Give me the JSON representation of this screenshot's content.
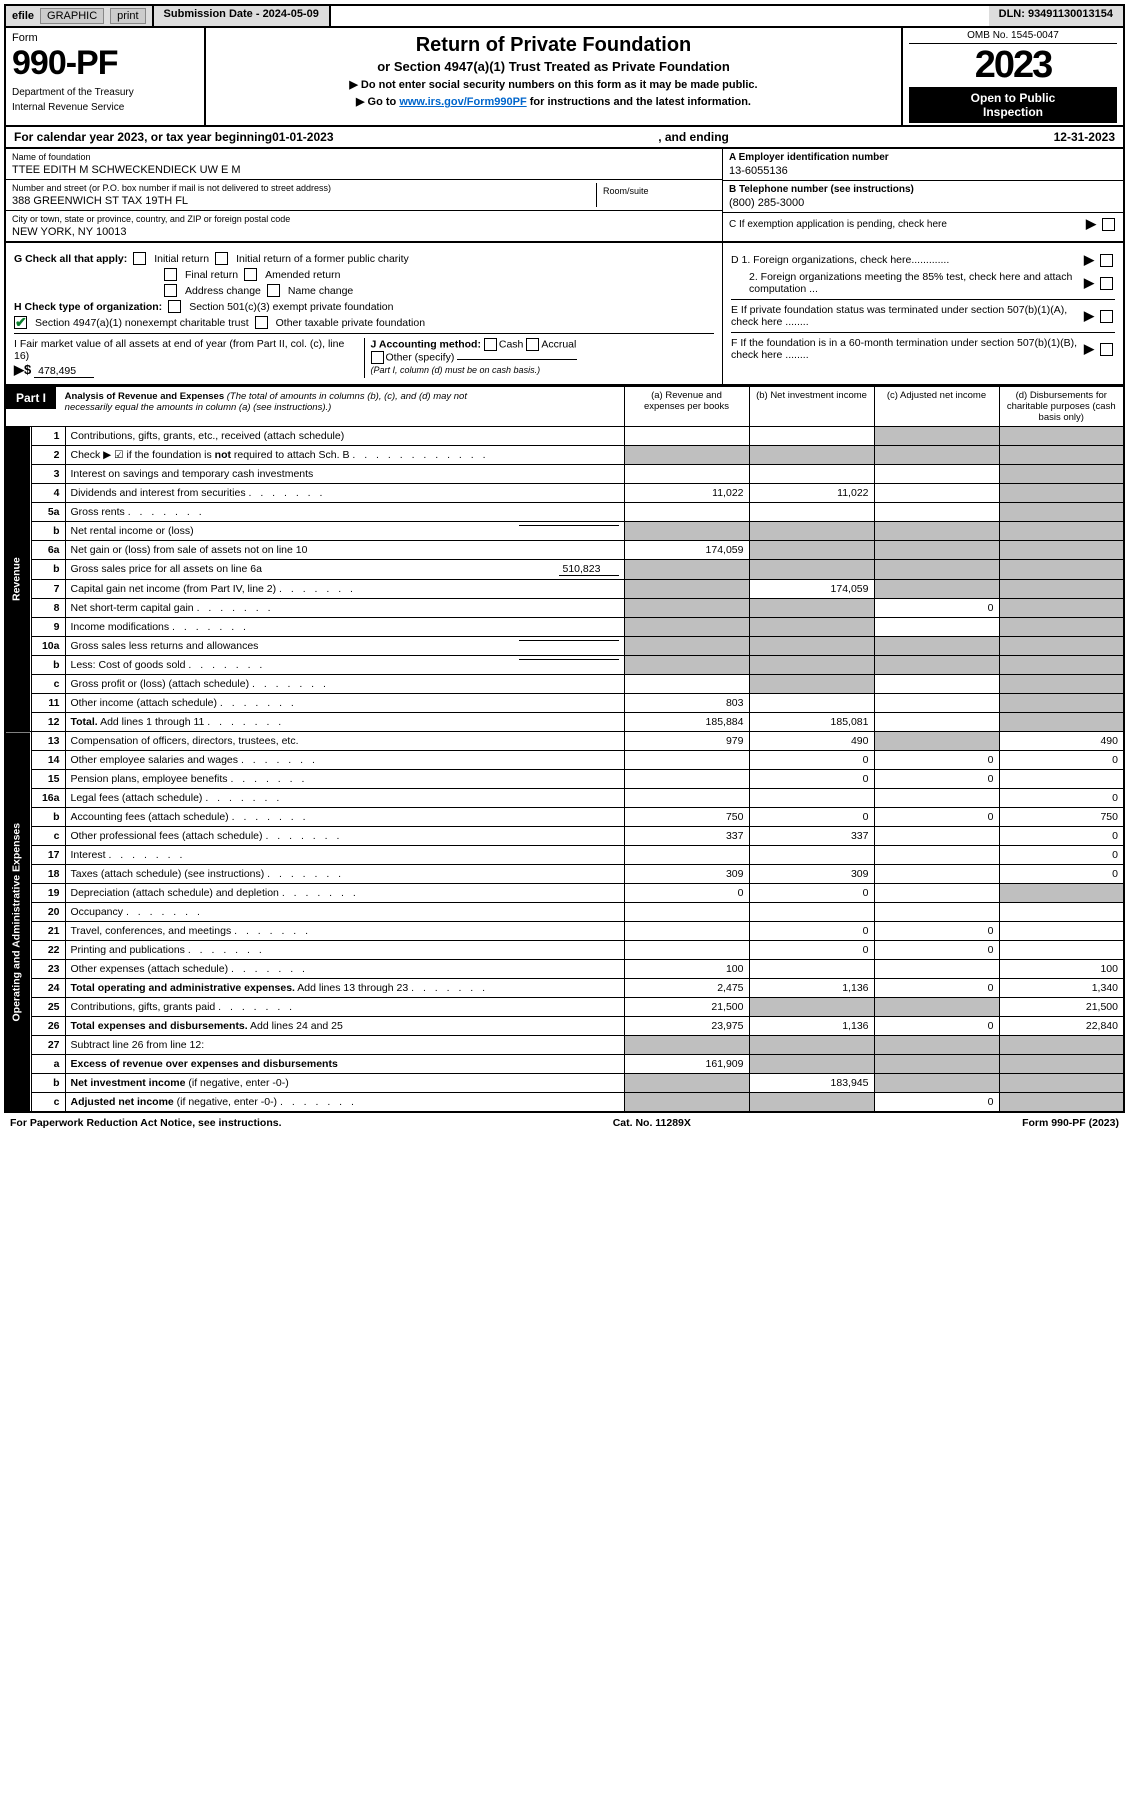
{
  "colors": {
    "grey": "#bfbfbf",
    "headerGrey": "#ddd",
    "link": "#0066cc",
    "checkGreen": "#0a7d2c"
  },
  "header": {
    "efileLabel": "efile",
    "graphicBtn": "GRAPHIC",
    "printBtn": "print",
    "submission": "Submission Date - 2024-05-09",
    "dln": "DLN: 93491130013154"
  },
  "topbox": {
    "formWord": "Form",
    "formNum": "990-PF",
    "dept1": "Department of the Treasury",
    "dept2": "Internal Revenue Service",
    "title1": "Return of Private Foundation",
    "title2": "or Section 4947(a)(1) Trust Treated as Private Foundation",
    "note1": "▶ Do not enter social security numbers on this form as it may be made public.",
    "note2a": "▶ Go to ",
    "note2link": "www.irs.gov/Form990PF",
    "note2b": " for instructions and the latest information.",
    "omb": "OMB No. 1545-0047",
    "year": "2023",
    "open1": "Open to Public",
    "open2": "Inspection"
  },
  "yearline": {
    "prefix": "For calendar year 2023, or tax year beginning ",
    "begin": "01-01-2023",
    "mid": ", and ending ",
    "end": "12-31-2023"
  },
  "id": {
    "nameLbl": "Name of foundation",
    "name": "TTEE EDITH M SCHWECKENDIECK UW E M",
    "addrLbl": "Number and street (or P.O. box number if mail is not delivered to street address)",
    "addr": "388 GREENWICH ST TAX 19TH FL",
    "roomLbl": "Room/suite",
    "cityLbl": "City or town, state or province, country, and ZIP or foreign postal code",
    "city": "NEW YORK, NY  10013",
    "einLbl": "A Employer identification number",
    "ein": "13-6055136",
    "phoneLbl": "B Telephone number (see instructions)",
    "phone": "(800) 285-3000",
    "pendingLbl": "C If exemption application is pending, check here"
  },
  "g": {
    "label": "G Check all that apply:",
    "opts": [
      "Initial return",
      "Initial return of a former public charity",
      "Final return",
      "Amended return",
      "Address change",
      "Name change"
    ],
    "hLabel": "H Check type of organization:",
    "h1": "Section 501(c)(3) exempt private foundation",
    "h2": "Section 4947(a)(1) nonexempt charitable trust",
    "h3": "Other taxable private foundation",
    "iLabel": "I Fair market value of all assets at end of year (from Part II, col. (c), line 16)",
    "iArrow": "▶$",
    "iVal": "478,495",
    "jLabel": "J Accounting method:",
    "j1": "Cash",
    "j2": "Accrual",
    "j3": "Other (specify)",
    "jNote": "(Part I, column (d) must be on cash basis.)",
    "d1": "D 1. Foreign organizations, check here.............",
    "d2": "2. Foreign organizations meeting the 85% test, check here and attach computation ...",
    "eLabel": "E  If private foundation status was terminated under section 507(b)(1)(A), check here ........",
    "fLabel": "F  If the foundation is in a 60-month termination under section 507(b)(1)(B), check here ........"
  },
  "part1": {
    "tag": "Part I",
    "title": "Analysis of Revenue and Expenses",
    "titleNote": "(The total of amounts in columns (b), (c), and (d) may not necessarily equal the amounts in column (a) (see instructions).)",
    "colA": "(a)   Revenue and expenses per books",
    "colB": "(b)  Net investment income",
    "colC": "(c)  Adjusted net income",
    "colD": "(d)  Disbursements for charitable purposes (cash basis only)",
    "sideRevenue": "Revenue",
    "sideExpenses": "Operating and Administrative Expenses"
  },
  "rows": [
    {
      "n": "1",
      "d": "Contributions, gifts, grants, etc., received (attach schedule)",
      "a": "",
      "b": "",
      "cGrey": true,
      "dGrey": true
    },
    {
      "n": "2",
      "d": "Check ▶ ☑ if the foundation is <b>not</b> required to attach Sch. B",
      "dotsAfter": true,
      "noCells": true
    },
    {
      "n": "3",
      "d": "Interest on savings and temporary cash investments",
      "a": "",
      "b": "",
      "c": "",
      "dGrey": true
    },
    {
      "n": "4",
      "d": "Dividends and interest from securities",
      "dots": true,
      "a": "11,022",
      "b": "11,022",
      "c": "",
      "dGrey": true
    },
    {
      "n": "5a",
      "d": "Gross rents",
      "dots": true,
      "a": "",
      "b": "",
      "c": "",
      "dGrey": true
    },
    {
      "n": "b",
      "d": "Net rental income or (loss)",
      "inlineBlank": true,
      "aGrey": true,
      "bGrey": true,
      "cGrey": true,
      "dGrey": true
    },
    {
      "n": "6a",
      "d": "Net gain or (loss) from sale of assets not on line 10",
      "a": "174,059",
      "bGrey": true,
      "cGrey": true,
      "dGrey": true
    },
    {
      "n": "b",
      "d": "Gross sales price for all assets on line 6a",
      "inlineVal": "510,823",
      "aGrey": true,
      "bGrey": true,
      "cGrey": true,
      "dGrey": true
    },
    {
      "n": "7",
      "d": "Capital gain net income (from Part IV, line 2)",
      "dots": true,
      "aGrey": true,
      "b": "174,059",
      "cGrey": true,
      "dGrey": true
    },
    {
      "n": "8",
      "d": "Net short-term capital gain",
      "dots": true,
      "aGrey": true,
      "bGrey": true,
      "c": "0",
      "dGrey": true
    },
    {
      "n": "9",
      "d": "Income modifications",
      "dots": true,
      "aGrey": true,
      "bGrey": true,
      "c": "",
      "dGrey": true
    },
    {
      "n": "10a",
      "d": "Gross sales less returns and allowances",
      "inlineBlank": true,
      "aGrey": true,
      "bGrey": true,
      "cGrey": true,
      "dGrey": true
    },
    {
      "n": "b",
      "d": "Less: Cost of goods sold",
      "dots": true,
      "inlineBlank": true,
      "aGrey": true,
      "bGrey": true,
      "cGrey": true,
      "dGrey": true
    },
    {
      "n": "c",
      "d": "Gross profit or (loss) (attach schedule)",
      "dots": true,
      "a": "",
      "bGrey": true,
      "c": "",
      "dGrey": true
    },
    {
      "n": "11",
      "d": "Other income (attach schedule)",
      "dots": true,
      "a": "803",
      "b": "",
      "c": "",
      "dGrey": true
    },
    {
      "n": "12",
      "d": "<b>Total.</b> Add lines 1 through 11",
      "dots": true,
      "a": "185,884",
      "b": "185,081",
      "c": "",
      "dGrey": true
    },
    {
      "n": "13",
      "d": "Compensation of officers, directors, trustees, etc.",
      "a": "979",
      "b": "490",
      "cGrey": true,
      "da": "490"
    },
    {
      "n": "14",
      "d": "Other employee salaries and wages",
      "dots": true,
      "a": "",
      "b": "0",
      "c": "0",
      "da": "0"
    },
    {
      "n": "15",
      "d": "Pension plans, employee benefits",
      "dots": true,
      "a": "",
      "b": "0",
      "c": "0",
      "da": ""
    },
    {
      "n": "16a",
      "d": "Legal fees (attach schedule)",
      "dots": true,
      "a": "",
      "b": "",
      "c": "",
      "da": "0"
    },
    {
      "n": "b",
      "d": "Accounting fees (attach schedule)",
      "dots": true,
      "a": "750",
      "b": "0",
      "c": "0",
      "da": "750"
    },
    {
      "n": "c",
      "d": "Other professional fees (attach schedule)",
      "dots": true,
      "a": "337",
      "b": "337",
      "c": "",
      "da": "0"
    },
    {
      "n": "17",
      "d": "Interest",
      "dots": true,
      "a": "",
      "b": "",
      "c": "",
      "da": "0"
    },
    {
      "n": "18",
      "d": "Taxes (attach schedule) (see instructions)",
      "dots": true,
      "a": "309",
      "b": "309",
      "c": "",
      "da": "0"
    },
    {
      "n": "19",
      "d": "Depreciation (attach schedule) and depletion",
      "dots": true,
      "a": "0",
      "b": "0",
      "c": "",
      "dGrey": true
    },
    {
      "n": "20",
      "d": "Occupancy",
      "dots": true,
      "a": "",
      "b": "",
      "c": "",
      "da": ""
    },
    {
      "n": "21",
      "d": "Travel, conferences, and meetings",
      "dots": true,
      "a": "",
      "b": "0",
      "c": "0",
      "da": ""
    },
    {
      "n": "22",
      "d": "Printing and publications",
      "dots": true,
      "a": "",
      "b": "0",
      "c": "0",
      "da": ""
    },
    {
      "n": "23",
      "d": "Other expenses (attach schedule)",
      "dots": true,
      "a": "100",
      "b": "",
      "c": "",
      "da": "100"
    },
    {
      "n": "24",
      "d": "<b>Total operating and administrative expenses.</b> Add lines 13 through 23",
      "dots": true,
      "a": "2,475",
      "b": "1,136",
      "c": "0",
      "da": "1,340"
    },
    {
      "n": "25",
      "d": "Contributions, gifts, grants paid",
      "dots": true,
      "a": "21,500",
      "bGrey": true,
      "cGrey": true,
      "da": "21,500"
    },
    {
      "n": "26",
      "d": "<b>Total expenses and disbursements.</b> Add lines 24 and 25",
      "a": "23,975",
      "b": "1,136",
      "c": "0",
      "da": "22,840"
    },
    {
      "n": "27",
      "d": "Subtract line 26 from line 12:",
      "aGrey": true,
      "bGrey": true,
      "cGrey": true,
      "dGrey": true
    },
    {
      "n": "a",
      "d": "<b>Excess of revenue over expenses and disbursements</b>",
      "a": "161,909",
      "bGrey": true,
      "cGrey": true,
      "dGrey": true
    },
    {
      "n": "b",
      "d": "<b>Net investment income</b> (if negative, enter -0-)",
      "aGrey": true,
      "b": "183,945",
      "cGrey": true,
      "dGrey": true
    },
    {
      "n": "c",
      "d": "<b>Adjusted net income</b> (if negative, enter -0-)",
      "dots": true,
      "aGrey": true,
      "bGrey": true,
      "c": "0",
      "dGrey": true
    }
  ],
  "footer": {
    "left": "For Paperwork Reduction Act Notice, see instructions.",
    "mid": "Cat. No. 11289X",
    "right": "Form 990-PF (2023)"
  }
}
